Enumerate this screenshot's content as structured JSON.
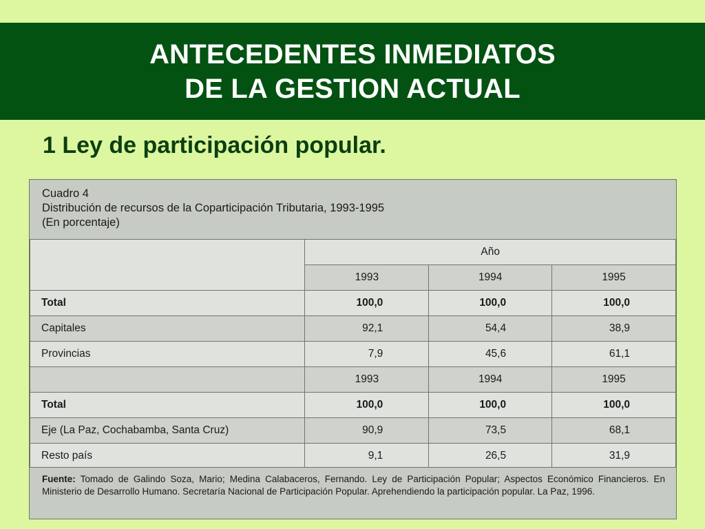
{
  "slide": {
    "title_line1": "ANTECEDENTES INMEDIATOS",
    "title_line2": "DE LA GESTION ACTUAL",
    "subtitle": "1  Ley de participación popular."
  },
  "table": {
    "caption_line1": "Cuadro 4",
    "caption_line2": "Distribución de recursos de la Coparticipación Tributaria, 1993-1995",
    "caption_line3": "(En porcentaje)",
    "year_header": "Año",
    "block1": {
      "years": [
        "1993",
        "1994",
        "1995"
      ],
      "rows": [
        {
          "label": "Total",
          "values": [
            "100,0",
            "100,0",
            "100,0"
          ]
        },
        {
          "label": "Capitales",
          "values": [
            "92,1",
            "54,4",
            "38,9"
          ]
        },
        {
          "label": "Provincias",
          "values": [
            "7,9",
            "45,6",
            "61,1"
          ]
        }
      ]
    },
    "block2": {
      "years": [
        "1993",
        "1994",
        "1995"
      ],
      "rows": [
        {
          "label": "Total",
          "values": [
            "100,0",
            "100,0",
            "100,0"
          ]
        },
        {
          "label": "Eje (La Paz, Cochabamba, Santa Cruz)",
          "values": [
            "90,9",
            "73,5",
            "68,1"
          ]
        },
        {
          "label": "Resto país",
          "values": [
            "9,1",
            "26,5",
            "31,9"
          ]
        }
      ]
    },
    "footer_label": "Fuente:",
    "footer_text": "Tomado de Galindo Soza, Mario; Medina Calabaceros, Fernando. Ley de Participación Popular; Aspectos Económico Financieros. En Ministerio de Desarrollo Humano. Secretaría Nacional de Participación Popular. Aprehendiendo la participación popular. La Paz, 1996."
  }
}
